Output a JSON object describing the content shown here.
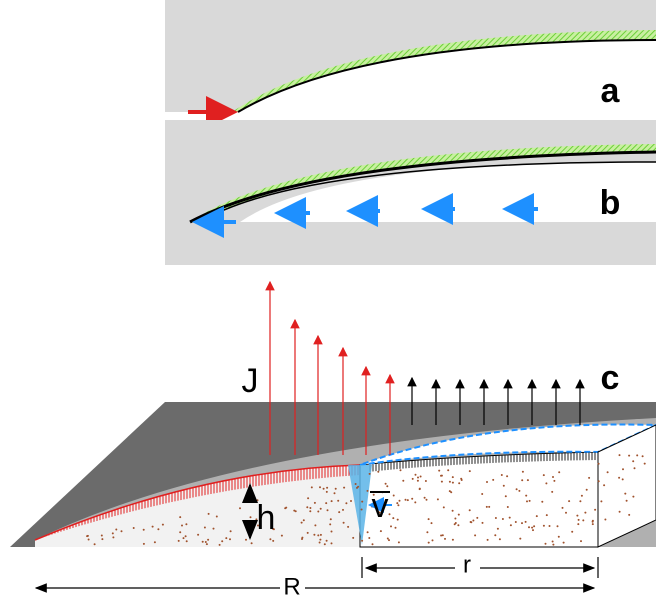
{
  "panels": {
    "a": "a",
    "b": "b",
    "c": "c"
  },
  "symbols": {
    "flux": "J",
    "height": "h",
    "velocity": "v",
    "radius_inner": "r",
    "radius_outer": "R"
  }
}
